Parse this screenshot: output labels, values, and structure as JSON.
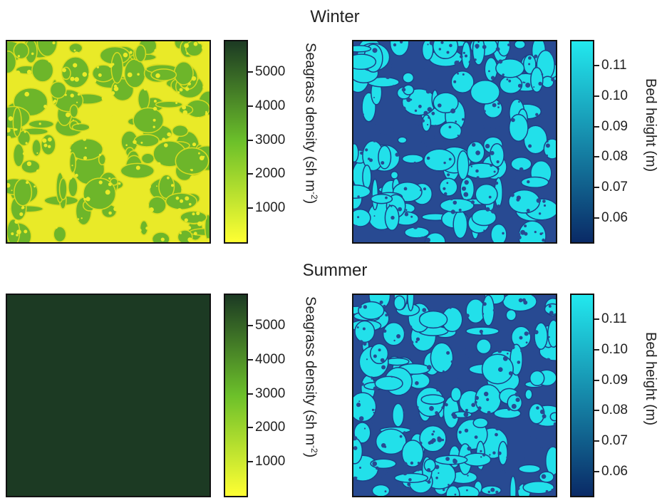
{
  "titles": {
    "winter": "Winter",
    "summer": "Summer"
  },
  "colors": {
    "density_low": "#ffff33",
    "density_mid": "#6cc02a",
    "density_high": "#1c3a23",
    "height_low": "#0a2a66",
    "height_high": "#22e8ee",
    "patch_yellow": "#e9ea28",
    "patch_green": "#6db62a",
    "patch_dark_blue": "#284a92",
    "patch_cyan": "#22e0ea"
  },
  "chart_data": [
    {
      "type": "heatmap",
      "panel": "winter-density",
      "colorbar": {
        "label": "Seagrass density (sh m",
        "label_sup": "-2",
        "label_end": ")",
        "ticks": [
          "5000",
          "4000",
          "3000",
          "2000",
          "1000"
        ],
        "tick_values": [
          5000,
          4000,
          3000,
          2000,
          1000
        ],
        "range": [
          0,
          5900
        ]
      },
      "pattern": "patchy"
    },
    {
      "type": "heatmap",
      "panel": "winter-height",
      "colorbar": {
        "label": "Bed height (m)",
        "ticks": [
          "0.11",
          "0.10",
          "0.09",
          "0.08",
          "0.07",
          "0.06"
        ],
        "tick_values": [
          0.11,
          0.1,
          0.09,
          0.08,
          0.07,
          0.06
        ],
        "range": [
          0.052,
          0.118
        ]
      },
      "pattern": "patchy"
    },
    {
      "type": "heatmap",
      "panel": "summer-density",
      "colorbar": {
        "label": "Seagrass density (sh m",
        "label_sup": "-2",
        "label_end": ")",
        "ticks": [
          "5000",
          "4000",
          "3000",
          "2000",
          "1000"
        ],
        "tick_values": [
          5000,
          4000,
          3000,
          2000,
          1000
        ],
        "range": [
          0,
          5900
        ]
      },
      "pattern": "uniform"
    },
    {
      "type": "heatmap",
      "panel": "summer-height",
      "colorbar": {
        "label": "Bed height (m)",
        "ticks": [
          "0.11",
          "0.10",
          "0.09",
          "0.08",
          "0.07",
          "0.06"
        ],
        "tick_values": [
          0.11,
          0.1,
          0.09,
          0.08,
          0.07,
          0.06
        ],
        "range": [
          0.052,
          0.118
        ]
      },
      "pattern": "patchy"
    }
  ]
}
